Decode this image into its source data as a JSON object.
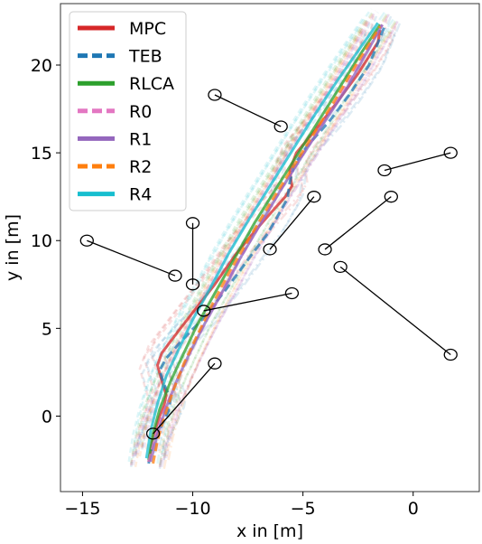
{
  "chart_data": {
    "type": "line",
    "xlabel": "x in [m]",
    "ylabel": "y in [m]",
    "xlim": [
      -16,
      3
    ],
    "ylim": [
      -4.3,
      23.5
    ],
    "xticks": [
      -15,
      -10,
      -5,
      0
    ],
    "xtick_labels": [
      "−15",
      "−10",
      "−5",
      "0"
    ],
    "yticks": [
      0,
      5,
      10,
      15,
      20
    ],
    "ytick_labels": [
      "0",
      "5",
      "10",
      "15",
      "20"
    ],
    "grid": false,
    "legend_position": "top-left",
    "series": [
      {
        "name": "MPC",
        "color": "#d62728",
        "dash": "solid",
        "x": [
          -12.0,
          -11.8,
          -11.5,
          -11.3,
          -11.2,
          -11.4,
          -11.6,
          -11.4,
          -10.8,
          -10.0,
          -9.0,
          -8.0,
          -7.0,
          -6.3,
          -5.8,
          -5.5,
          -5.6,
          -5.3,
          -4.5,
          -3.5,
          -2.5,
          -1.6,
          -1.5
        ],
        "y": [
          -2.6,
          -1.2,
          0.0,
          0.6,
          1.2,
          2.0,
          2.9,
          3.6,
          4.6,
          5.9,
          7.5,
          9.3,
          10.8,
          11.8,
          12.5,
          13.1,
          14.0,
          15.0,
          16.2,
          17.8,
          19.5,
          21.3,
          22.0
        ]
      },
      {
        "name": "TEB",
        "color": "#1f77b4",
        "dash": "dashed",
        "x": [
          -12.0,
          -11.8,
          -11.4,
          -11.1,
          -11.0,
          -11.3,
          -11.5,
          -11.2,
          -10.5,
          -9.5,
          -8.5,
          -7.5,
          -6.6,
          -6.1,
          -5.7,
          -5.6,
          -5.4,
          -4.8,
          -3.8,
          -2.9,
          -2.0,
          -1.3
        ],
        "y": [
          -2.7,
          -1.5,
          -0.5,
          0.3,
          1.0,
          1.8,
          2.6,
          3.3,
          4.3,
          5.6,
          7.2,
          8.9,
          10.4,
          11.5,
          12.4,
          13.3,
          14.3,
          15.4,
          16.8,
          18.3,
          20.0,
          22.2
        ]
      },
      {
        "name": "RLCA",
        "color": "#2ca02c",
        "dash": "solid",
        "x": [
          -12.0,
          -11.8,
          -11.5,
          -11.0,
          -10.4,
          -9.8,
          -9.0,
          -8.1,
          -7.2,
          -6.2,
          -5.2,
          -4.2,
          -3.2,
          -2.3,
          -1.5
        ],
        "y": [
          -2.5,
          -1.0,
          0.4,
          2.0,
          3.6,
          5.2,
          7.0,
          9.0,
          11.0,
          13.0,
          15.0,
          17.0,
          19.0,
          20.8,
          22.3
        ]
      },
      {
        "name": "R0",
        "color": "#e377c2",
        "dash": "dashed",
        "x": [
          -12.0,
          -11.7,
          -11.3,
          -10.8,
          -10.2,
          -9.6,
          -8.8,
          -8.0,
          -7.1,
          -6.2,
          -5.2,
          -4.2,
          -3.2,
          -2.3,
          -1.4
        ],
        "y": [
          -2.6,
          -1.2,
          0.3,
          1.8,
          3.4,
          5.0,
          6.8,
          8.7,
          10.6,
          12.5,
          14.5,
          16.5,
          18.5,
          20.4,
          22.3
        ]
      },
      {
        "name": "R1",
        "color": "#9467bd",
        "dash": "solid",
        "x": [
          -11.9,
          -11.6,
          -11.2,
          -10.7,
          -10.1,
          -9.4,
          -8.6,
          -7.8,
          -6.9,
          -6.0,
          -5.0,
          -4.0,
          -3.0,
          -2.2,
          -1.4
        ],
        "y": [
          -2.6,
          -1.0,
          0.5,
          2.1,
          3.7,
          5.4,
          7.2,
          9.1,
          11.0,
          12.9,
          14.9,
          16.8,
          18.7,
          20.5,
          22.3
        ]
      },
      {
        "name": "R2",
        "color": "#ff7f0e",
        "dash": "dashed",
        "x": [
          -11.8,
          -11.6,
          -11.3,
          -10.9,
          -10.4,
          -9.8,
          -9.1,
          -8.3,
          -7.4,
          -6.5,
          -5.5,
          -4.5,
          -3.5,
          -2.6,
          -1.5
        ],
        "y": [
          -2.7,
          -1.4,
          -0.1,
          1.4,
          3.0,
          4.6,
          6.4,
          8.3,
          10.2,
          12.1,
          14.1,
          16.1,
          18.1,
          20.0,
          22.2
        ]
      },
      {
        "name": "R4",
        "color": "#17becf",
        "dash": "solid",
        "x": [
          -12.1,
          -11.9,
          -11.6,
          -11.2,
          -10.6,
          -10.0,
          -9.2,
          -8.4,
          -7.5,
          -6.5,
          -5.5,
          -4.5,
          -3.5,
          -2.5,
          -1.6
        ],
        "y": [
          -2.4,
          -0.8,
          0.7,
          2.3,
          3.9,
          5.5,
          7.3,
          9.2,
          11.1,
          13.1,
          15.1,
          17.1,
          19.0,
          20.8,
          22.4
        ]
      }
    ],
    "obstacles": [
      {
        "start": [
          -9.0,
          18.3
        ],
        "end": [
          -6.0,
          16.5
        ]
      },
      {
        "start": [
          1.7,
          15.0
        ],
        "end": [
          -1.3,
          14.0
        ]
      },
      {
        "start": [
          -4.5,
          12.5
        ],
        "end": [
          -6.5,
          9.5
        ]
      },
      {
        "start": [
          -1.0,
          12.5
        ],
        "end": [
          -4.0,
          9.5
        ]
      },
      {
        "start": [
          -10.0,
          11.0
        ],
        "end": [
          -10.0,
          7.5
        ]
      },
      {
        "start": [
          -14.8,
          10.0
        ],
        "end": [
          -10.8,
          8.0
        ]
      },
      {
        "start": [
          -5.5,
          7.0
        ],
        "end": [
          -9.5,
          6.0
        ]
      },
      {
        "start": [
          -3.3,
          8.5
        ],
        "end": [
          1.7,
          3.5
        ]
      },
      {
        "start": [
          -9.0,
          3.0
        ],
        "end": [
          -11.8,
          -1.0
        ]
      }
    ]
  }
}
